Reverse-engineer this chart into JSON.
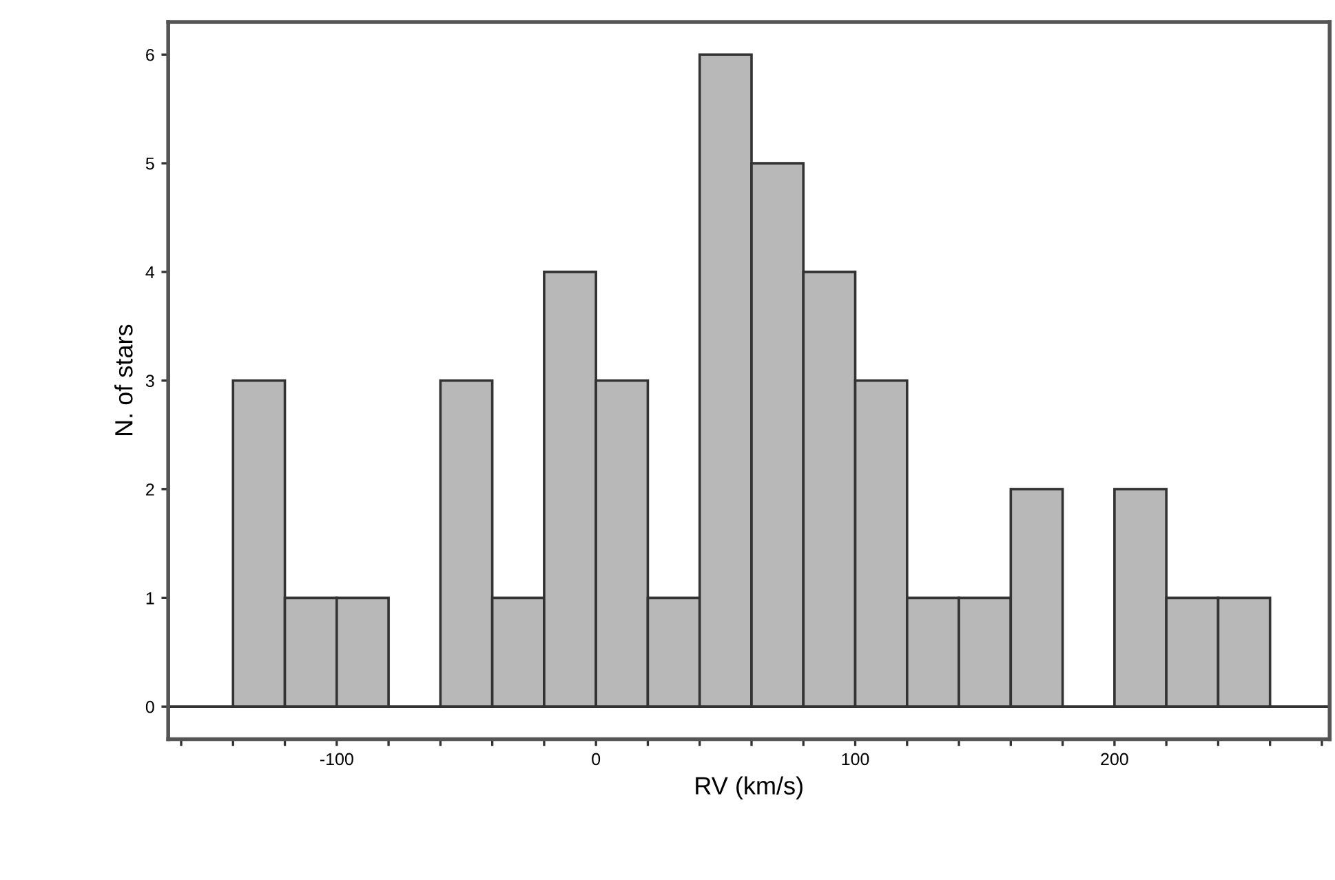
{
  "chart_data": {
    "type": "histogram",
    "xlabel": "RV (km/s)",
    "ylabel": "N. of stars",
    "bins": [
      -140,
      -120,
      -100,
      -80,
      -60,
      -40,
      -20,
      0,
      20,
      40,
      60,
      80,
      100,
      120,
      140,
      160,
      180,
      200,
      220,
      240,
      260
    ],
    "values": [
      3,
      1,
      1,
      0,
      3,
      1,
      4,
      3,
      1,
      6,
      5,
      4,
      3,
      1,
      1,
      2,
      0,
      2,
      1,
      1
    ],
    "color": "#b8b8b8",
    "ref_lines": [
      {
        "axis": "y",
        "value": 0,
        "color": "#333333"
      }
    ],
    "xlim": [
      -165,
      283
    ],
    "ylim": [
      -0.3,
      6.3
    ],
    "xticks": [
      {
        "value": -160,
        "label": null
      },
      {
        "value": -140,
        "label": null
      },
      {
        "value": -120,
        "label": null
      },
      -100,
      {
        "value": -80,
        "label": null
      },
      {
        "value": -60,
        "label": null
      },
      {
        "value": -40,
        "label": null
      },
      {
        "value": -20,
        "label": null
      },
      0,
      {
        "value": 20,
        "label": null
      },
      {
        "value": 40,
        "label": null
      },
      {
        "value": 60,
        "label": null
      },
      {
        "value": 80,
        "label": null
      },
      100,
      {
        "value": 120,
        "label": null
      },
      {
        "value": 140,
        "label": null
      },
      {
        "value": 160,
        "label": null
      },
      {
        "value": 180,
        "label": null
      },
      200,
      {
        "value": 220,
        "label": null
      },
      {
        "value": 240,
        "label": null
      },
      {
        "value": 260,
        "label": null
      },
      {
        "value": 280,
        "label": null
      }
    ],
    "yticks": [
      0,
      1,
      2,
      3,
      4,
      5,
      6
    ],
    "grid": false
  }
}
